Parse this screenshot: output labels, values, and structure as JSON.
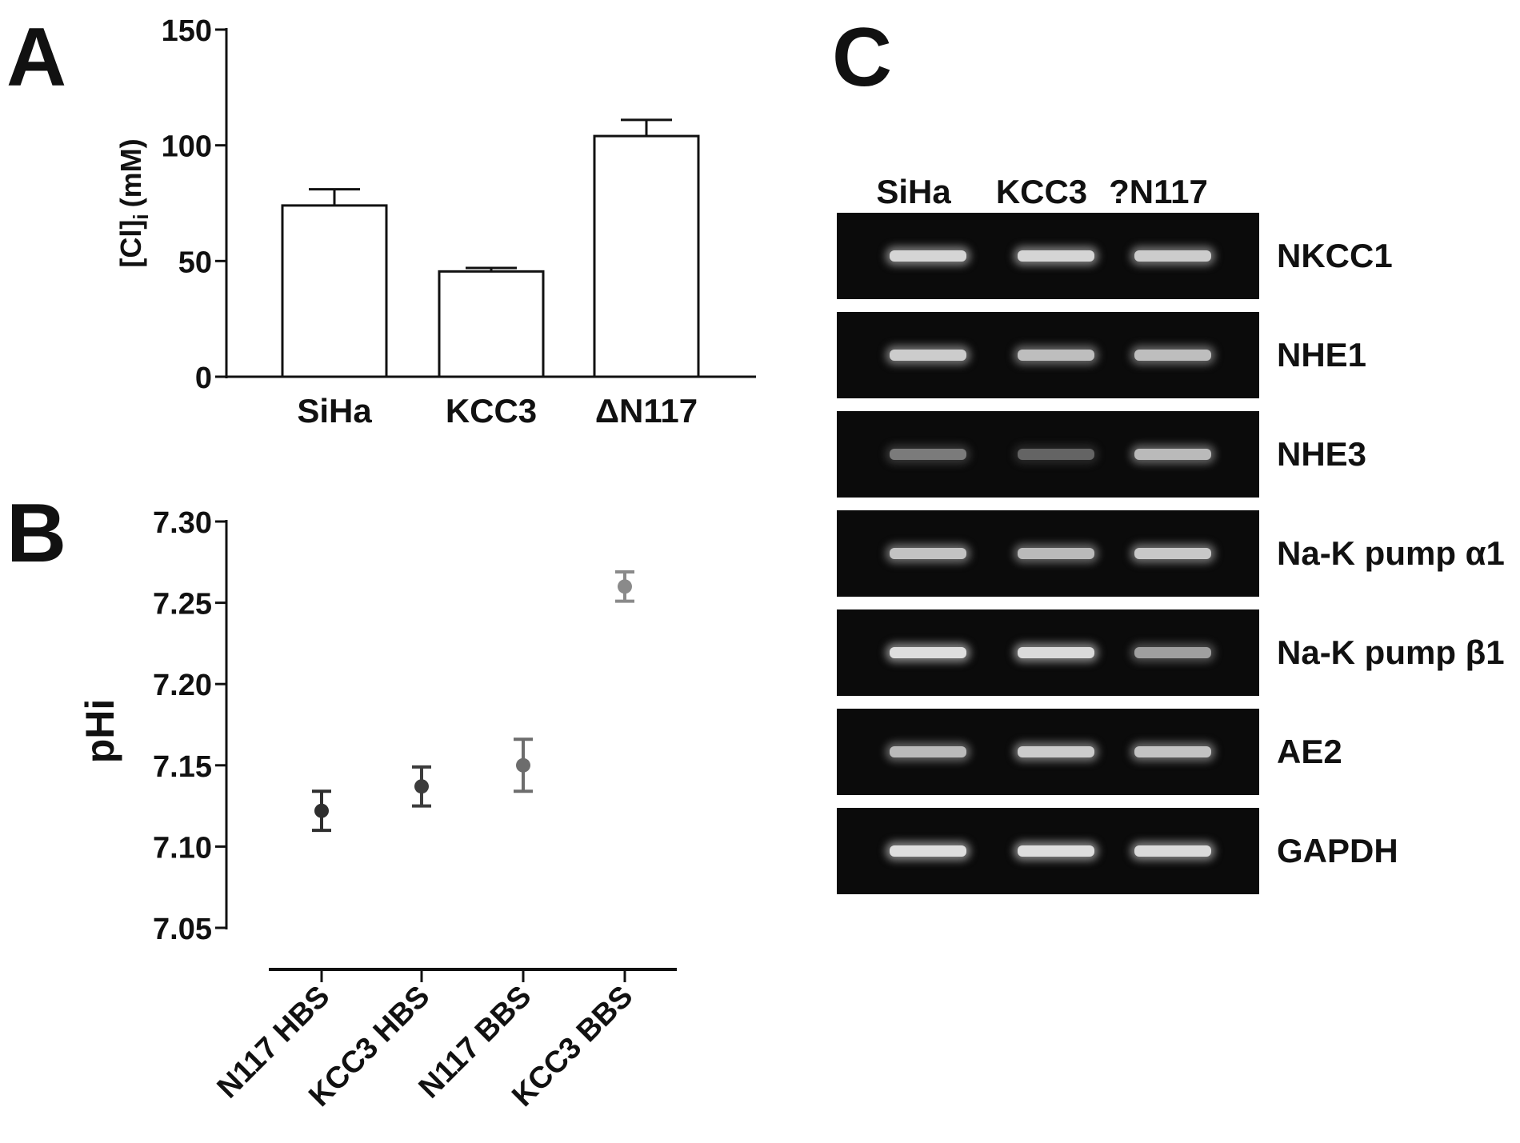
{
  "panels": {
    "a": "A",
    "b": "B",
    "c": "C"
  },
  "chart_data": [
    {
      "type": "bar",
      "panel": "A",
      "categories": [
        "SiHa",
        "KCC3",
        "ΔN117"
      ],
      "values": [
        74,
        45.5,
        104
      ],
      "errors": [
        7,
        1.5,
        7
      ],
      "ylabel_base": "[Cl]",
      "ylabel_sub": "i",
      "ylabel_unit": "(mM)",
      "ylim": [
        0,
        150
      ],
      "yticks": [
        0,
        50,
        100,
        150
      ]
    },
    {
      "type": "scatter",
      "panel": "B",
      "categories": [
        "N117 HBS",
        "KCC3 HBS",
        "N117 BBS",
        "KCC3 BBS"
      ],
      "values": [
        7.122,
        7.137,
        7.15,
        7.26
      ],
      "errors": [
        0.012,
        0.012,
        0.016,
        0.009
      ],
      "colors": [
        "#2e2e2e",
        "#3c3c3c",
        "#6d6d6d",
        "#8a8a8a"
      ],
      "ylabel": "pHi",
      "ylim": [
        7.05,
        7.3
      ],
      "yticks": [
        "7.05",
        "7.10",
        "7.15",
        "7.20",
        "7.25",
        "7.30"
      ]
    }
  ],
  "gel": {
    "lanes": [
      "SiHa",
      "KCC3",
      "?N117"
    ],
    "rows": [
      {
        "label": "NKCC1",
        "intensities": [
          0.85,
          0.85,
          0.8
        ]
      },
      {
        "label": "NHE1",
        "intensities": [
          0.8,
          0.72,
          0.72
        ]
      },
      {
        "label": "NHE3",
        "intensities": [
          0.35,
          0.22,
          0.7
        ]
      },
      {
        "label": "Na-K pump α1",
        "intensities": [
          0.75,
          0.7,
          0.78
        ]
      },
      {
        "label": "Na-K pump β1",
        "intensities": [
          0.9,
          0.88,
          0.55
        ]
      },
      {
        "label": "AE2",
        "intensities": [
          0.7,
          0.8,
          0.75
        ]
      },
      {
        "label": "GAPDH",
        "intensities": [
          0.9,
          0.9,
          0.88
        ]
      }
    ]
  }
}
